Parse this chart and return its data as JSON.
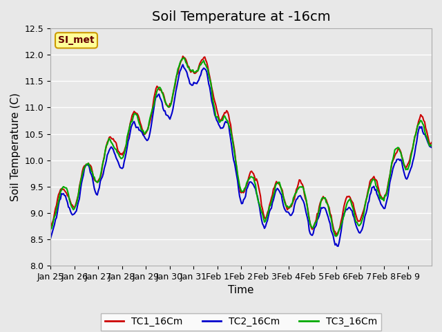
{
  "title": "Soil Temperature at -16cm",
  "xlabel": "Time",
  "ylabel": "Soil Temperature (C)",
  "ylim": [
    8.0,
    12.5
  ],
  "yticks": [
    8.0,
    8.5,
    9.0,
    9.5,
    10.0,
    10.5,
    11.0,
    11.5,
    12.0,
    12.5
  ],
  "bg_color": "#e8e8e8",
  "plot_bg_color": "#e8e8e8",
  "tc1_color": "#cc0000",
  "tc2_color": "#0000cc",
  "tc3_color": "#00aa00",
  "legend_label1": "TC1_16Cm",
  "legend_label2": "TC2_16Cm",
  "legend_label3": "TC3_16Cm",
  "watermark_text": "SI_met",
  "watermark_bg": "#ffff99",
  "watermark_border": "#cc9900",
  "watermark_text_color": "#660000",
  "title_fontsize": 14,
  "axis_label_fontsize": 11,
  "tick_fontsize": 9,
  "legend_fontsize": 10,
  "line_width": 1.5,
  "n_points": 384,
  "n_days": 16,
  "xtick_labels": [
    "Jan 25",
    "Jan 26",
    "Jan 27",
    "Jan 28",
    "Jan 29",
    "Jan 30",
    "Jan 31",
    "Feb 1",
    "Feb 2",
    "Feb 3",
    "Feb 4",
    "Feb 5",
    "Feb 6",
    "Feb 7",
    "Feb 8",
    "Feb 9"
  ]
}
